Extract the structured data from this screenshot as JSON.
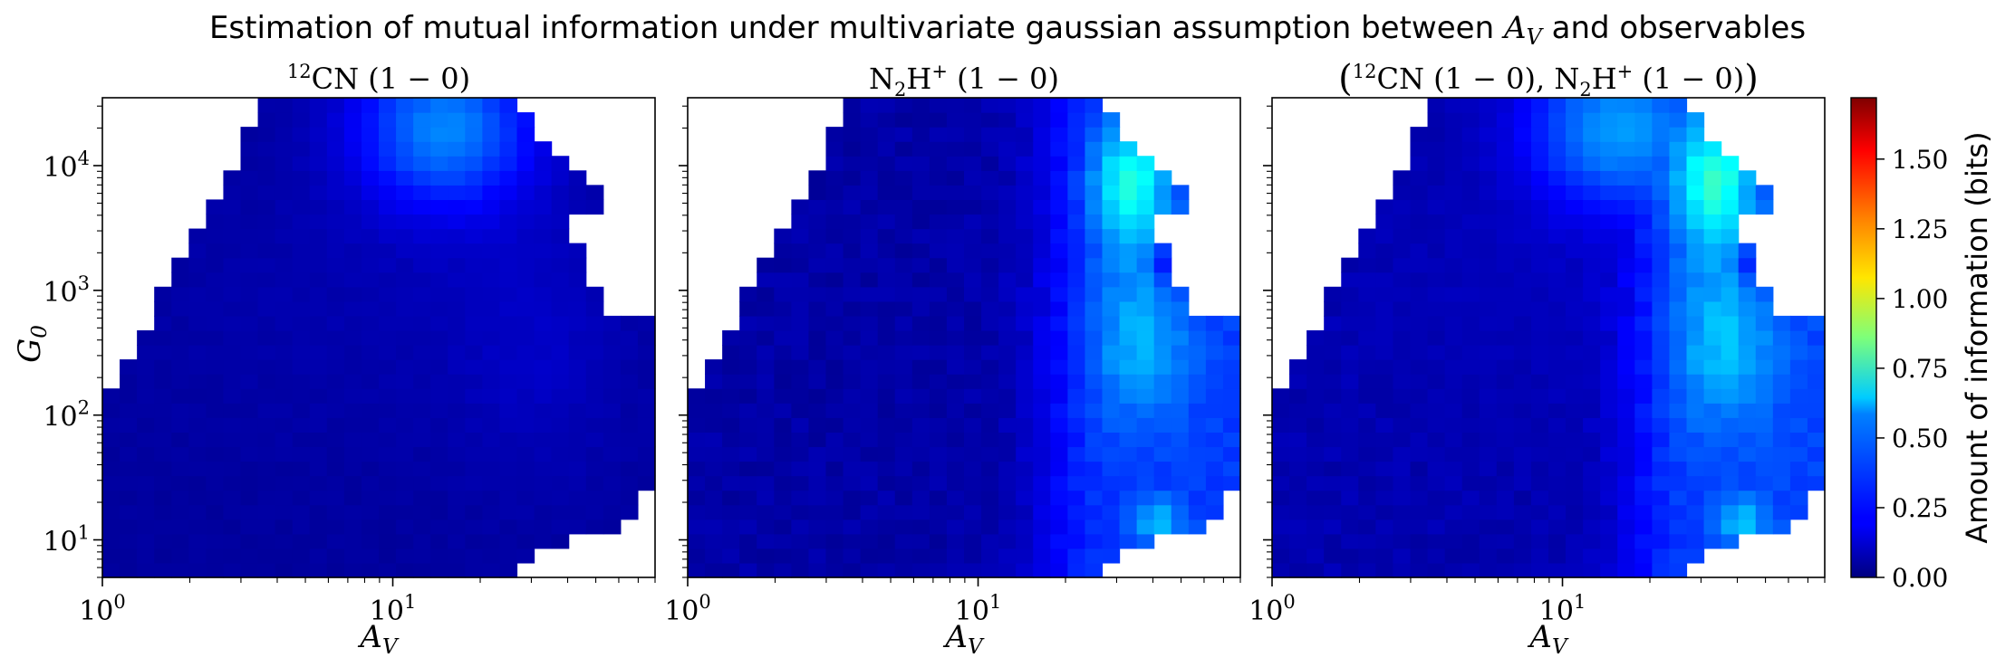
{
  "title": "Estimation of mutual information under multivariate gaussian assumption between A_V and observables",
  "colorbar": {
    "label": "Amount of information (bits)",
    "ticks": [
      "0.00",
      "0.25",
      "0.50",
      "0.75",
      "1.00",
      "1.25",
      "1.50"
    ],
    "vmin": 0.0,
    "vmax": 1.72,
    "colormap": "jet"
  },
  "chart_data": [
    {
      "type": "heatmap",
      "title": "12CN (1 − 0)",
      "xlabel": "A_V",
      "ylabel": "G_0",
      "xscale": "log",
      "yscale": "log",
      "xlim": [
        1,
        80
      ],
      "ylim": [
        5,
        35000
      ],
      "xticks": [
        "10^0",
        "10^1"
      ],
      "yticks": [
        "10^1",
        "10^2",
        "10^3",
        "10^4"
      ],
      "cells": "mutual information in bits on a 32×33 log-spaced (A_V, G_0) grid; max ≈ 0.43 near A_V≈15, G_0≈2×10^4"
    },
    {
      "type": "heatmap",
      "title": "N2H+ (1 − 0)",
      "xlabel": "A_V",
      "ylabel": "",
      "xscale": "log",
      "yscale": "log",
      "xlim": [
        1,
        80
      ],
      "ylim": [
        5,
        35000
      ],
      "xticks": [
        "10^0",
        "10^1"
      ],
      "cells": "mutual information in bits; max ≈ 0.70 near A_V≈33, G_0≈8×10^3"
    },
    {
      "type": "heatmap",
      "title": "(12CN (1 − 0), N2H+ (1 − 0))",
      "xlabel": "A_V",
      "ylabel": "",
      "xscale": "log",
      "yscale": "log",
      "xlim": [
        1,
        80
      ],
      "ylim": [
        5,
        35000
      ],
      "xticks": [
        "10^0",
        "10^1"
      ],
      "cells": "mutual information in bits; max ≈ 0.72 near A_V≈33, G_0≈8×10^3"
    }
  ]
}
